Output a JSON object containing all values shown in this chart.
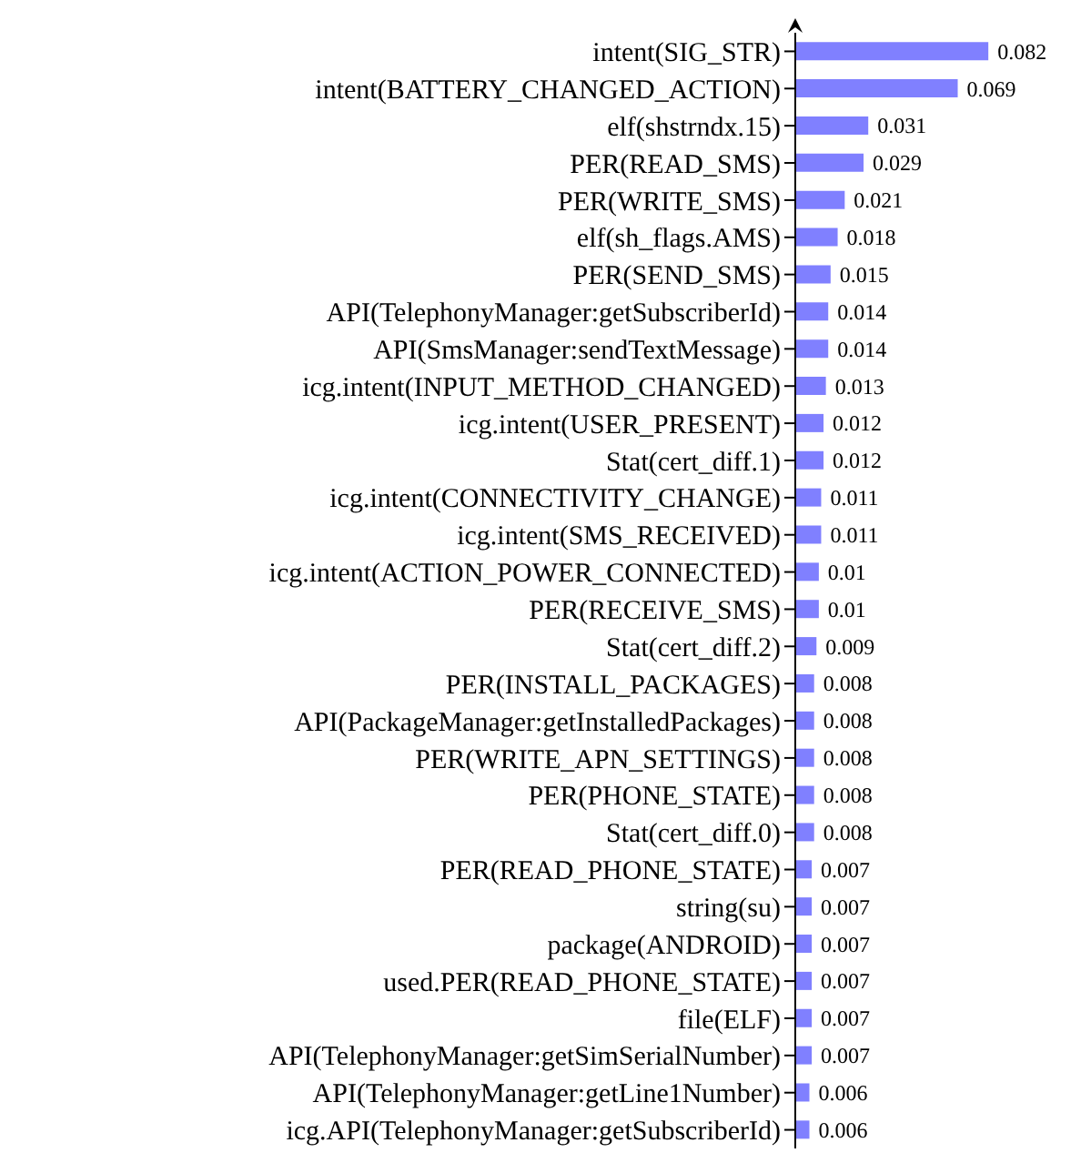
{
  "chart_data": {
    "type": "bar",
    "orientation": "horizontal",
    "data_labels": true,
    "color": "#8080ff",
    "categories": [
      "intent(SIG_STR)",
      "intent(BATTERY_CHANGED_ACTION)",
      "elf(shstrndx.15)",
      "PER(READ_SMS)",
      "PER(WRITE_SMS)",
      "elf(sh_flags.AMS)",
      "PER(SEND_SMS)",
      "API(TelephonyManager:getSubscriberId)",
      "API(SmsManager:sendTextMessage)",
      "icg.intent(INPUT_METHOD_CHANGED)",
      "icg.intent(USER_PRESENT)",
      "Stat(cert_diff.1)",
      "icg.intent(CONNECTIVITY_CHANGE)",
      "icg.intent(SMS_RECEIVED)",
      "icg.intent(ACTION_POWER_CONNECTED)",
      "PER(RECEIVE_SMS)",
      "Stat(cert_diff.2)",
      "PER(INSTALL_PACKAGES)",
      "API(PackageManager:getInstalledPackages)",
      "PER(WRITE_APN_SETTINGS)",
      "PER(PHONE_STATE)",
      "Stat(cert_diff.0)",
      "PER(READ_PHONE_STATE)",
      "string(su)",
      "package(ANDROID)",
      "used.PER(READ_PHONE_STATE)",
      "file(ELF)",
      "API(TelephonyManager:getSimSerialNumber)",
      "API(TelephonyManager:getLine1Number)",
      "icg.API(TelephonyManager:getSubscriberId)"
    ],
    "values": [
      0.082,
      0.069,
      0.031,
      0.029,
      0.021,
      0.018,
      0.015,
      0.014,
      0.014,
      0.013,
      0.012,
      0.012,
      0.011,
      0.011,
      0.01,
      0.01,
      0.009,
      0.008,
      0.008,
      0.008,
      0.008,
      0.008,
      0.007,
      0.007,
      0.007,
      0.007,
      0.007,
      0.007,
      0.006,
      0.006
    ]
  }
}
